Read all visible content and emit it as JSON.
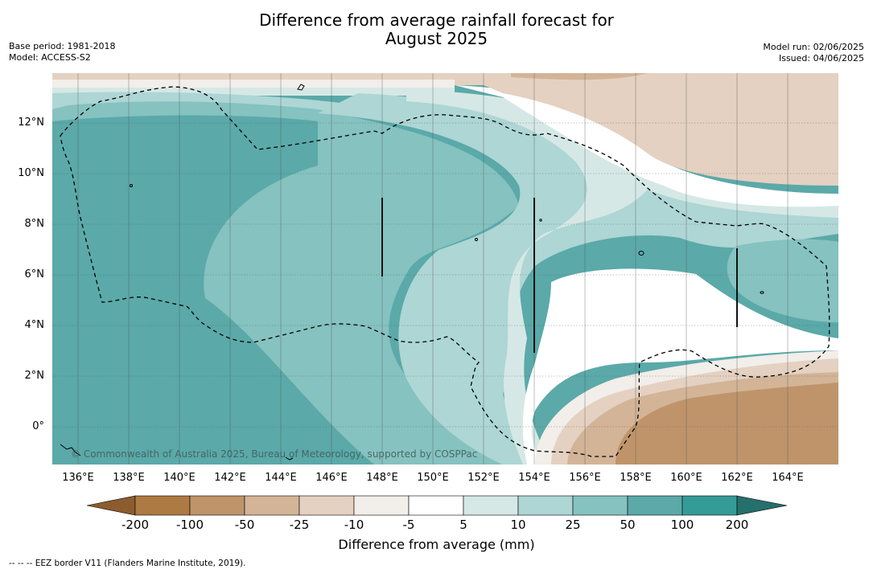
{
  "header": {
    "title_line1": "Difference from average rainfall forecast for",
    "title_line2": "August 2025",
    "base_period": "Base period: 1981-2018",
    "model": "Model: ACCESS-S2",
    "model_run": "Model run: 02/06/2025",
    "issued": "Issued: 04/06/2025"
  },
  "map": {
    "lat_labels": [
      "12°N",
      "10°N",
      "8°N",
      "6°N",
      "4°N",
      "2°N",
      "0°"
    ],
    "lon_labels": [
      "136°E",
      "138°E",
      "140°E",
      "142°E",
      "144°E",
      "146°E",
      "148°E",
      "150°E",
      "152°E",
      "154°E",
      "156°E",
      "158°E",
      "160°E",
      "162°E",
      "164°E"
    ],
    "copyright": "© Commonwealth of Australia 2025, Bureau of Meteorology, supported by COSPPac"
  },
  "colorbar": {
    "colors": {
      "brown_dark": "#8c5c2e",
      "brown": "#ad7a43",
      "tan": "#bf946a",
      "light_tan": "#d3b497",
      "beige": "#e4d1c1",
      "off_white": "#f2eee9",
      "white": "#ffffff",
      "pale_teal": "#d5e8e6",
      "light_teal": "#add6d4",
      "mid_teal": "#85c2c0",
      "teal": "#5ba9a9",
      "dark_teal": "#359b97",
      "deep_teal": "#256f6c"
    },
    "tick_labels": [
      "-200",
      "-100",
      "-50",
      "-25",
      "-10",
      "-5",
      "5",
      "10",
      "25",
      "50",
      "100",
      "200"
    ],
    "title": "Difference from average (mm)"
  },
  "footnote": "-- -- -- EEZ border V11 (Flanders Marine Institute, 2019)."
}
